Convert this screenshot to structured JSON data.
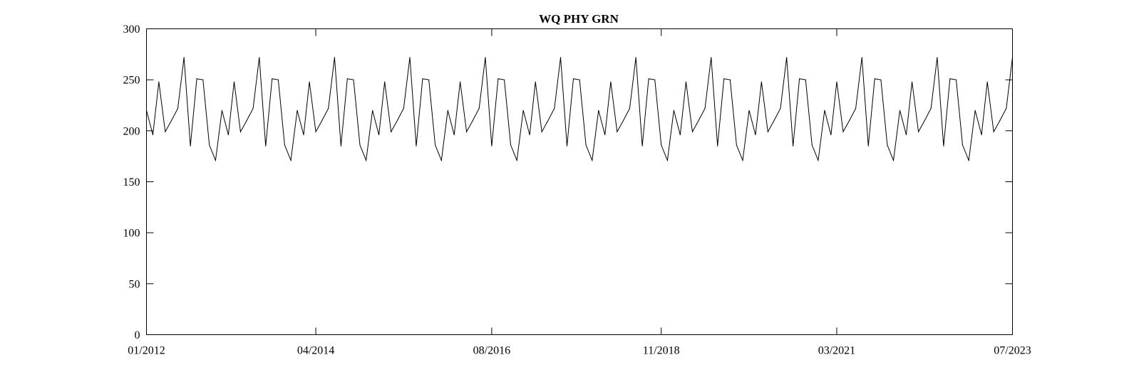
{
  "chart_data": {
    "type": "line",
    "title": "WQ PHY GRN",
    "xlabel": "",
    "ylabel": "",
    "xlim": [
      "01/2012",
      "07/2023"
    ],
    "ylim": [
      0,
      300
    ],
    "x_tick_labels": [
      "01/2012",
      "04/2014",
      "08/2016",
      "11/2018",
      "03/2021",
      "07/2023"
    ],
    "y_tick_labels": [
      "0",
      "50",
      "100",
      "150",
      "200",
      "250",
      "300"
    ],
    "grid": false,
    "legend": "none",
    "line_color": "#000000",
    "series": [
      {
        "x": [
          "2012-01-01",
          "2012-01-01",
          "2012-02-01",
          "2012-03-01",
          "2012-04-01",
          "2012-05-01",
          "2012-06-01",
          "2012-07-01",
          "2012-08-01",
          "2012-09-01",
          "2012-10-01",
          "2012-11-01",
          "2012-12-01",
          "2013-01-01",
          "2013-02-01",
          "2013-03-01",
          "2013-04-01",
          "2013-05-01",
          "2013-06-01",
          "2013-07-01",
          "2013-08-01",
          "2013-09-01",
          "2013-10-01",
          "2013-11-01",
          "2013-12-01",
          "2014-01-01",
          "2014-02-01",
          "2014-03-01",
          "2014-04-01",
          "2014-05-01",
          "2014-06-01",
          "2014-07-01",
          "2014-08-01",
          "2014-09-01",
          "2014-10-01",
          "2014-11-01",
          "2014-12-01",
          "2015-01-01",
          "2015-02-01",
          "2015-03-01",
          "2015-04-01",
          "2015-05-01",
          "2015-06-01",
          "2015-07-01",
          "2015-08-01",
          "2015-09-01",
          "2015-10-01",
          "2015-11-01",
          "2015-12-01",
          "2016-01-01",
          "2016-02-01",
          "2016-03-01",
          "2016-04-01",
          "2016-05-01",
          "2016-06-01",
          "2016-07-01",
          "2016-08-01",
          "2016-09-01",
          "2016-10-01",
          "2016-11-01",
          "2016-12-01",
          "2017-01-01",
          "2017-02-01",
          "2017-03-01",
          "2017-04-01",
          "2017-05-01",
          "2017-06-01",
          "2017-07-01",
          "2017-08-01",
          "2017-09-01",
          "2017-10-01",
          "2017-11-01",
          "2017-12-01",
          "2018-01-01",
          "2018-02-01",
          "2018-03-01",
          "2018-04-01",
          "2018-05-01",
          "2018-06-01",
          "2018-07-01",
          "2018-08-01",
          "2018-09-01",
          "2018-10-01",
          "2018-11-01",
          "2018-12-01",
          "2019-01-01",
          "2019-02-01",
          "2019-03-01",
          "2019-04-01",
          "2019-05-01",
          "2019-06-01",
          "2019-07-01",
          "2019-08-01",
          "2019-09-01",
          "2019-10-01",
          "2019-11-01",
          "2019-12-01",
          "2020-01-01",
          "2020-02-01",
          "2020-03-01",
          "2020-04-01",
          "2020-05-01",
          "2020-06-01",
          "2020-07-01",
          "2020-08-01",
          "2020-09-01",
          "2020-10-01",
          "2020-11-01",
          "2020-12-01",
          "2021-01-01",
          "2021-02-01",
          "2021-03-01",
          "2021-04-01",
          "2021-05-01",
          "2021-06-01",
          "2021-07-01",
          "2021-08-01",
          "2021-09-01",
          "2021-10-01",
          "2021-11-01",
          "2021-12-01",
          "2022-01-01",
          "2022-02-01",
          "2022-03-01",
          "2022-04-01",
          "2022-05-01",
          "2022-06-01",
          "2022-07-01",
          "2022-08-01",
          "2022-09-01",
          "2022-10-01",
          "2022-11-01",
          "2022-12-01",
          "2023-01-01",
          "2023-02-01",
          "2023-03-01",
          "2023-04-01",
          "2023-05-01",
          "2023-06-01",
          "2023-07-01"
        ],
        "y": [
          0,
          220,
          196,
          248,
          199,
          210,
          222,
          272,
          185,
          251,
          250,
          186,
          171,
          220,
          196,
          248,
          199,
          210,
          222,
          272,
          185,
          251,
          250,
          186,
          171,
          220,
          196,
          248,
          199,
          210,
          222,
          272,
          185,
          251,
          250,
          186,
          171,
          220,
          196,
          248,
          199,
          210,
          222,
          272,
          185,
          251,
          250,
          186,
          171,
          220,
          196,
          248,
          199,
          210,
          222,
          272,
          185,
          251,
          250,
          186,
          171,
          220,
          196,
          248,
          199,
          210,
          222,
          272,
          185,
          251,
          250,
          186,
          171,
          220,
          196,
          248,
          199,
          210,
          222,
          272,
          185,
          251,
          250,
          186,
          171,
          220,
          196,
          248,
          199,
          210,
          222,
          272,
          185,
          251,
          250,
          186,
          171,
          220,
          196,
          248,
          199,
          210,
          222,
          272,
          185,
          251,
          250,
          186,
          171,
          220,
          196,
          248,
          199,
          210,
          222,
          272,
          185,
          251,
          250,
          186,
          171,
          220,
          196,
          248,
          199,
          210,
          222,
          272,
          185,
          251,
          250,
          186,
          171,
          220,
          196,
          248,
          199,
          210,
          222,
          272
        ]
      }
    ]
  }
}
